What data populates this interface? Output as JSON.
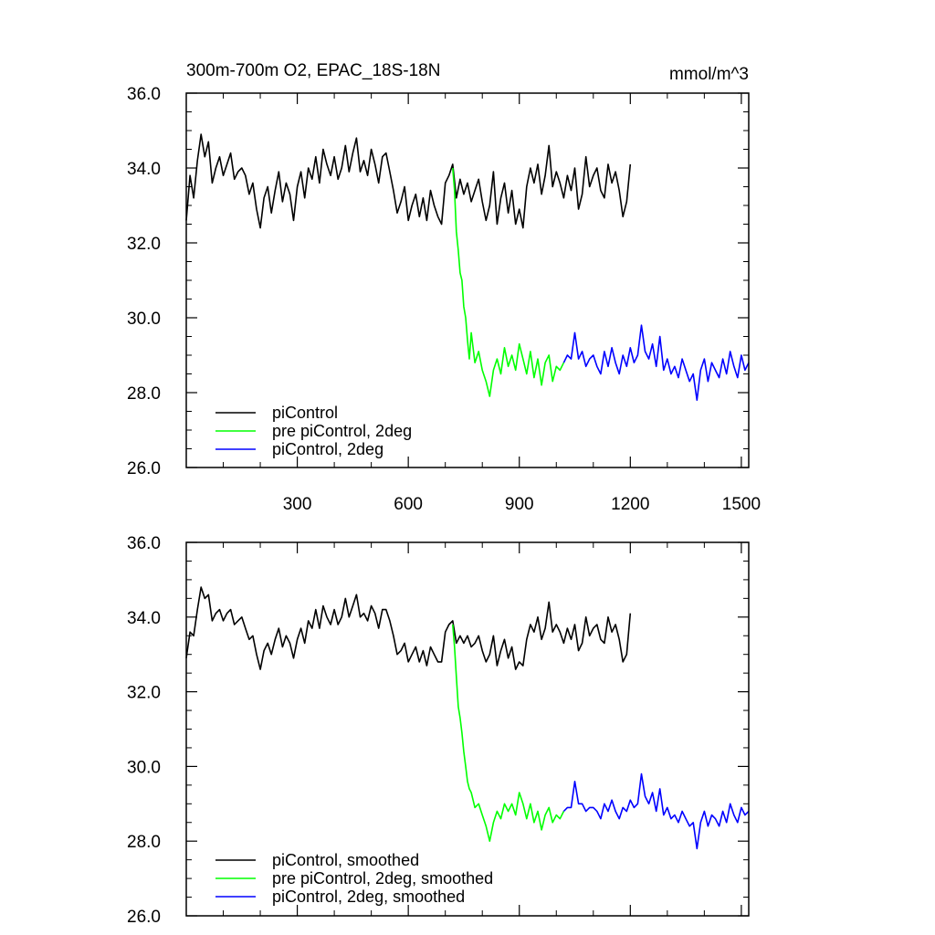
{
  "colors": {
    "piControl": "#000000",
    "pre_piControl_2deg": "#00ff00",
    "piControl_2deg": "#0000ff",
    "axis": "#000000",
    "background": "#ffffff"
  },
  "chart_data": [
    {
      "type": "line",
      "title": "300m-700m O2, EPAC_18S-18N",
      "units": "mmol/m^3",
      "xlabel": "",
      "ylabel": "",
      "xlim": [
        0,
        1520
      ],
      "ylim": [
        26,
        36
      ],
      "xticks": [
        300,
        600,
        900,
        1200,
        1500
      ],
      "xtick_labels": [
        "300",
        "600",
        "900",
        "1200",
        "1500"
      ],
      "yticks": [
        26,
        28,
        30,
        32,
        34,
        36
      ],
      "ytick_labels": [
        "26.0",
        "28.0",
        "30.0",
        "32.0",
        "34.0",
        "36.0"
      ],
      "legend_position": "bottom-left",
      "series": [
        {
          "name": "piControl",
          "color_key": "piControl",
          "x": [
            0,
            10,
            20,
            30,
            40,
            50,
            60,
            70,
            80,
            90,
            100,
            110,
            120,
            130,
            140,
            150,
            160,
            170,
            180,
            190,
            200,
            210,
            220,
            230,
            240,
            250,
            260,
            270,
            280,
            290,
            300,
            310,
            320,
            330,
            340,
            350,
            360,
            370,
            380,
            390,
            400,
            410,
            420,
            430,
            440,
            450,
            460,
            470,
            480,
            490,
            500,
            510,
            520,
            530,
            540,
            550,
            560,
            570,
            580,
            590,
            600,
            610,
            620,
            630,
            640,
            650,
            660,
            670,
            680,
            690,
            700,
            710,
            720,
            730,
            740,
            750,
            760,
            770,
            780,
            790,
            800,
            810,
            820,
            830,
            840,
            850,
            860,
            870,
            880,
            890,
            900,
            910,
            920,
            930,
            940,
            950,
            960,
            970,
            980,
            990,
            1000,
            1010,
            1020,
            1030,
            1040,
            1050,
            1060,
            1070,
            1080,
            1090,
            1100,
            1110,
            1120,
            1130,
            1140,
            1150,
            1160,
            1170,
            1180,
            1190,
            1200
          ],
          "values": [
            32.6,
            33.8,
            33.2,
            34.2,
            34.9,
            34.3,
            34.7,
            33.6,
            34.0,
            34.3,
            33.8,
            34.1,
            34.4,
            33.7,
            33.9,
            34.0,
            33.8,
            33.3,
            33.6,
            32.9,
            32.4,
            33.2,
            33.5,
            32.8,
            33.4,
            33.9,
            33.1,
            33.6,
            33.3,
            32.6,
            33.5,
            33.9,
            33.2,
            34.0,
            33.7,
            34.3,
            33.6,
            34.5,
            34.1,
            33.8,
            34.3,
            33.7,
            34.0,
            34.6,
            33.9,
            34.4,
            34.8,
            33.9,
            34.2,
            33.8,
            34.5,
            34.1,
            33.6,
            34.3,
            34.4,
            33.9,
            33.4,
            32.8,
            33.1,
            33.5,
            32.6,
            33.0,
            33.3,
            32.7,
            33.2,
            32.6,
            33.4,
            33.0,
            32.7,
            32.5,
            33.6,
            33.8,
            34.1,
            33.2,
            33.7,
            33.3,
            33.6,
            33.1,
            33.4,
            33.7,
            33.1,
            32.6,
            33.0,
            33.9,
            32.5,
            33.2,
            33.6,
            32.8,
            33.4,
            32.5,
            32.9,
            32.4,
            33.5,
            34.0,
            33.6,
            34.1,
            33.3,
            33.8,
            34.6,
            33.5,
            33.9,
            33.6,
            33.2,
            33.8,
            33.4,
            34.0,
            32.9,
            33.3,
            34.3,
            33.5,
            33.8,
            34.0,
            33.4,
            33.2,
            34.1,
            33.6,
            33.9,
            33.4,
            32.7,
            33.1,
            34.1
          ]
        },
        {
          "name": "pre piControl, 2deg",
          "color_key": "pre_piControl_2deg",
          "x": [
            720,
            725,
            730,
            735,
            740,
            745,
            750,
            755,
            760,
            765,
            770,
            775,
            780,
            790,
            800,
            810,
            820,
            830,
            840,
            850,
            860,
            870,
            880,
            890,
            900,
            910,
            920,
            930,
            940,
            950,
            960,
            970,
            980,
            990,
            1000,
            1010,
            1020
          ],
          "values": [
            34.0,
            33.4,
            32.3,
            31.8,
            31.2,
            31.0,
            30.3,
            30.0,
            29.4,
            28.9,
            29.6,
            29.2,
            28.8,
            29.1,
            28.6,
            28.3,
            27.9,
            28.6,
            28.9,
            28.5,
            29.2,
            28.7,
            29.0,
            28.6,
            29.3,
            28.9,
            28.5,
            29.1,
            28.4,
            28.9,
            28.2,
            28.8,
            29.0,
            28.3,
            28.7,
            28.6,
            28.8
          ]
        },
        {
          "name": "piControl, 2deg",
          "color_key": "piControl_2deg",
          "x": [
            1020,
            1030,
            1040,
            1050,
            1060,
            1070,
            1080,
            1090,
            1100,
            1110,
            1120,
            1130,
            1140,
            1150,
            1160,
            1170,
            1180,
            1190,
            1200,
            1210,
            1220,
            1230,
            1240,
            1250,
            1260,
            1270,
            1280,
            1290,
            1300,
            1310,
            1320,
            1330,
            1340,
            1350,
            1360,
            1370,
            1380,
            1390,
            1400,
            1410,
            1420,
            1430,
            1440,
            1450,
            1460,
            1470,
            1480,
            1490,
            1500,
            1510,
            1520
          ],
          "values": [
            28.8,
            29.0,
            28.9,
            29.6,
            28.9,
            29.1,
            28.7,
            28.9,
            29.0,
            28.7,
            28.5,
            29.1,
            28.7,
            29.2,
            28.8,
            28.5,
            29.0,
            28.7,
            29.2,
            28.8,
            29.0,
            29.8,
            29.1,
            28.9,
            29.3,
            28.7,
            29.5,
            28.6,
            28.9,
            28.5,
            28.7,
            28.4,
            28.9,
            28.6,
            28.3,
            28.5,
            27.8,
            28.6,
            28.9,
            28.3,
            28.8,
            28.6,
            28.4,
            28.9,
            28.5,
            29.1,
            28.7,
            28.4,
            29.0,
            28.6,
            28.8
          ]
        }
      ],
      "legend": [
        "piControl",
        "pre piControl, 2deg",
        "piControl, 2deg"
      ]
    },
    {
      "type": "line",
      "title": "",
      "units": "",
      "xlabel": "",
      "ylabel": "",
      "xlim": [
        0,
        1520
      ],
      "ylim": [
        26,
        36
      ],
      "xticks": [
        300,
        600,
        900,
        1200,
        1500
      ],
      "xtick_labels": [],
      "yticks": [
        26,
        28,
        30,
        32,
        34,
        36
      ],
      "ytick_labels": [
        "26.0",
        "28.0",
        "30.0",
        "32.0",
        "34.0",
        "36.0"
      ],
      "legend_position": "bottom-left",
      "series": [
        {
          "name": "piControl, smoothed",
          "color_key": "piControl",
          "x": [
            0,
            10,
            20,
            30,
            40,
            50,
            60,
            70,
            80,
            90,
            100,
            110,
            120,
            130,
            140,
            150,
            160,
            170,
            180,
            190,
            200,
            210,
            220,
            230,
            240,
            250,
            260,
            270,
            280,
            290,
            300,
            310,
            320,
            330,
            340,
            350,
            360,
            370,
            380,
            390,
            400,
            410,
            420,
            430,
            440,
            450,
            460,
            470,
            480,
            490,
            500,
            510,
            520,
            530,
            540,
            550,
            560,
            570,
            580,
            590,
            600,
            610,
            620,
            630,
            640,
            650,
            660,
            670,
            680,
            690,
            700,
            710,
            720,
            730,
            740,
            750,
            760,
            770,
            780,
            790,
            800,
            810,
            820,
            830,
            840,
            850,
            860,
            870,
            880,
            890,
            900,
            910,
            920,
            930,
            940,
            950,
            960,
            970,
            980,
            990,
            1000,
            1010,
            1020,
            1030,
            1040,
            1050,
            1060,
            1070,
            1080,
            1090,
            1100,
            1110,
            1120,
            1130,
            1140,
            1150,
            1160,
            1170,
            1180,
            1190,
            1200
          ],
          "values": [
            32.9,
            33.6,
            33.5,
            34.2,
            34.8,
            34.5,
            34.6,
            33.9,
            34.1,
            34.2,
            33.9,
            34.1,
            34.2,
            33.8,
            33.9,
            34.0,
            33.7,
            33.4,
            33.5,
            33.0,
            32.6,
            33.1,
            33.3,
            33.0,
            33.4,
            33.7,
            33.2,
            33.5,
            33.3,
            32.9,
            33.4,
            33.7,
            33.3,
            33.9,
            33.7,
            34.2,
            33.7,
            34.3,
            34.0,
            33.8,
            34.2,
            33.8,
            34.0,
            34.5,
            34.0,
            34.3,
            34.6,
            34.0,
            34.1,
            33.9,
            34.3,
            34.1,
            33.7,
            34.2,
            34.2,
            33.9,
            33.5,
            33.0,
            33.1,
            33.3,
            32.8,
            33.0,
            33.2,
            32.8,
            33.1,
            32.7,
            33.2,
            33.0,
            32.8,
            32.8,
            33.6,
            33.8,
            33.9,
            33.3,
            33.5,
            33.3,
            33.5,
            33.2,
            33.3,
            33.5,
            33.1,
            32.8,
            33.0,
            33.5,
            32.7,
            33.1,
            33.4,
            32.9,
            33.2,
            32.6,
            32.8,
            32.7,
            33.4,
            33.8,
            33.6,
            34.0,
            33.4,
            33.7,
            34.4,
            33.6,
            33.8,
            33.6,
            33.3,
            33.7,
            33.4,
            33.8,
            33.1,
            33.3,
            34.0,
            33.5,
            33.7,
            33.8,
            33.4,
            33.3,
            34.0,
            33.6,
            33.8,
            33.4,
            32.8,
            33.0,
            34.1
          ]
        },
        {
          "name": "pre piControl, 2deg, smoothed",
          "color_key": "pre_piControl_2deg",
          "x": [
            720,
            725,
            730,
            735,
            740,
            745,
            750,
            755,
            760,
            765,
            770,
            775,
            780,
            790,
            800,
            810,
            820,
            830,
            840,
            850,
            860,
            870,
            880,
            890,
            900,
            910,
            920,
            930,
            940,
            950,
            960,
            970,
            980,
            990,
            1000,
            1010,
            1020
          ],
          "values": [
            33.8,
            33.2,
            32.4,
            31.6,
            31.3,
            30.9,
            30.4,
            30.0,
            29.6,
            29.4,
            29.3,
            29.1,
            28.9,
            29.0,
            28.7,
            28.4,
            28.0,
            28.5,
            28.8,
            28.6,
            29.0,
            28.8,
            29.0,
            28.7,
            29.3,
            29.0,
            28.6,
            29.0,
            28.5,
            28.8,
            28.3,
            28.7,
            28.9,
            28.5,
            28.7,
            28.6,
            28.8
          ]
        },
        {
          "name": "piControl, 2deg, smoothed",
          "color_key": "piControl_2deg",
          "x": [
            1020,
            1030,
            1040,
            1050,
            1060,
            1070,
            1080,
            1090,
            1100,
            1110,
            1120,
            1130,
            1140,
            1150,
            1160,
            1170,
            1180,
            1190,
            1200,
            1210,
            1220,
            1230,
            1240,
            1250,
            1260,
            1270,
            1280,
            1290,
            1300,
            1310,
            1320,
            1330,
            1340,
            1350,
            1360,
            1370,
            1380,
            1390,
            1400,
            1410,
            1420,
            1430,
            1440,
            1450,
            1460,
            1470,
            1480,
            1490,
            1500,
            1510,
            1520
          ],
          "values": [
            28.8,
            28.9,
            28.9,
            29.6,
            29.0,
            29.0,
            28.8,
            28.9,
            28.9,
            28.8,
            28.6,
            29.0,
            28.8,
            29.1,
            28.8,
            28.6,
            28.9,
            28.8,
            29.1,
            28.9,
            29.0,
            29.8,
            29.2,
            29.0,
            29.3,
            28.8,
            29.4,
            28.7,
            28.9,
            28.6,
            28.7,
            28.5,
            28.8,
            28.6,
            28.4,
            28.5,
            27.8,
            28.5,
            28.8,
            28.4,
            28.7,
            28.6,
            28.4,
            28.8,
            28.5,
            29.0,
            28.7,
            28.5,
            28.9,
            28.7,
            28.8
          ]
        }
      ],
      "legend": [
        "piControl, smoothed",
        "pre piControl, 2deg, smoothed",
        "piControl, 2deg, smoothed"
      ]
    }
  ]
}
